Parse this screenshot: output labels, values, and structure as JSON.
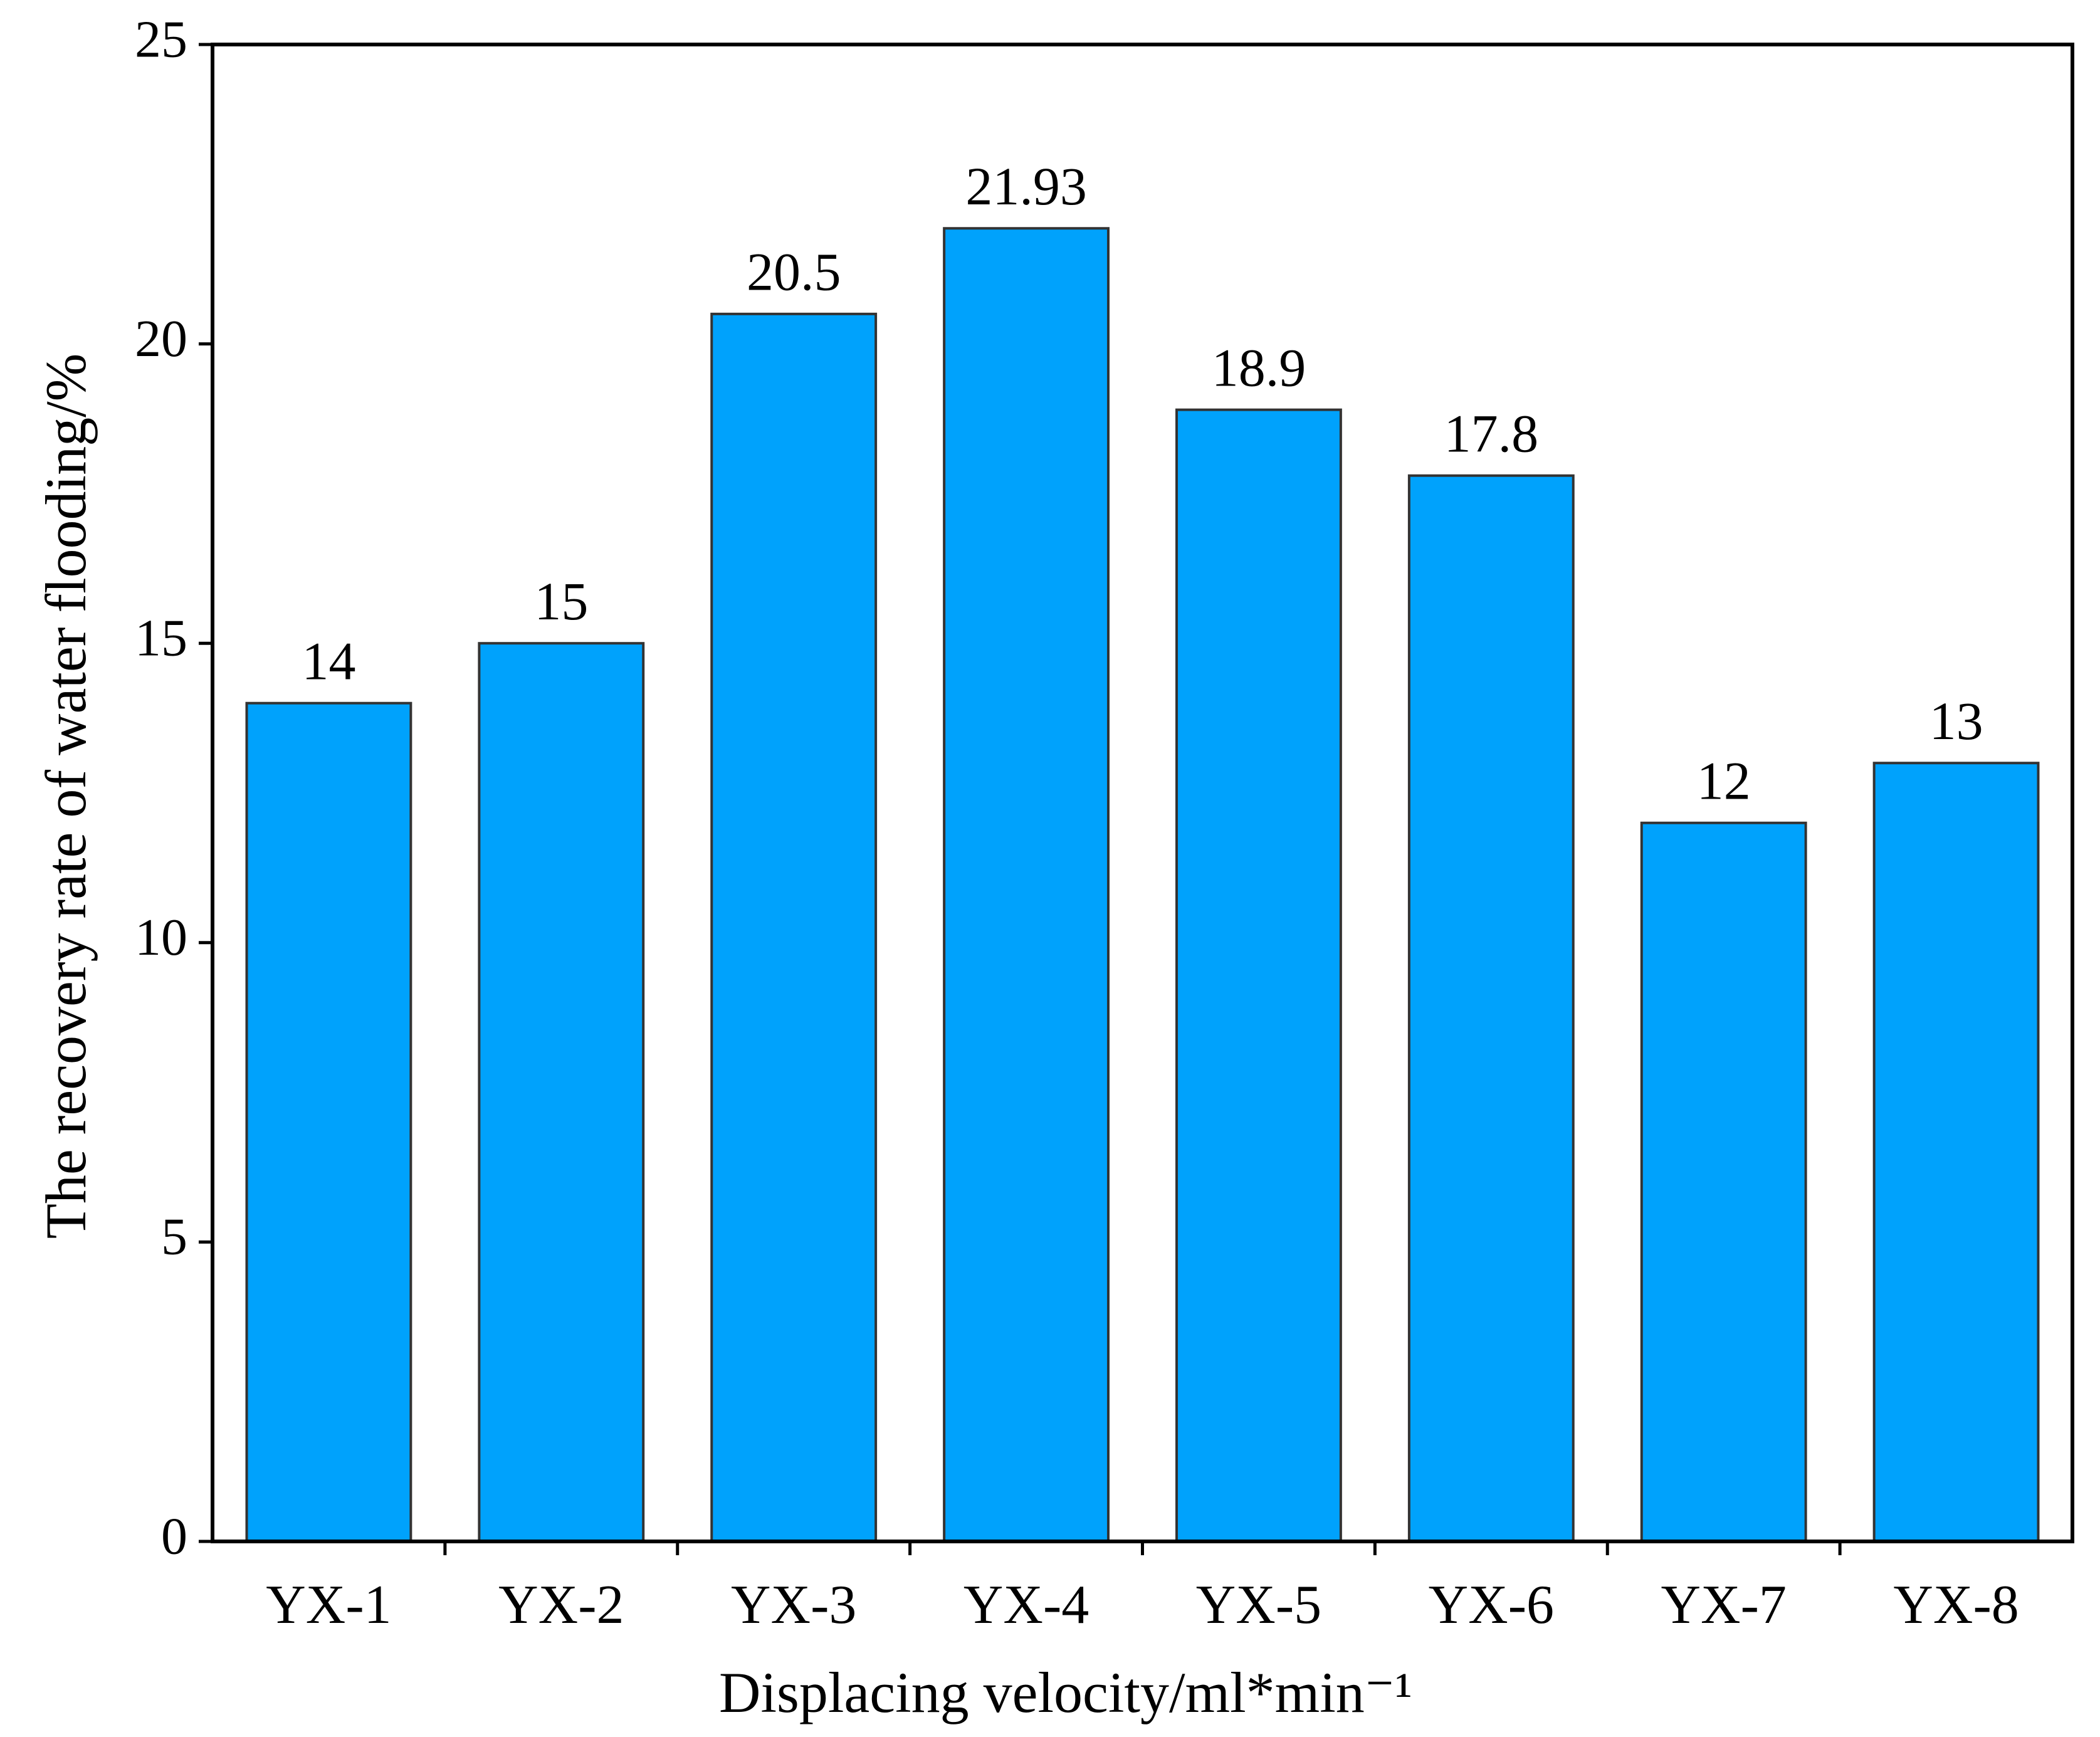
{
  "chart_data": {
    "type": "bar",
    "x_label": "Displacing velocity/ml*min⁻¹",
    "y_label": "The recovery rate of water flooding/%",
    "categories": [
      "YX-1",
      "YX-2",
      "YX-3",
      "YX-4",
      "YX-5",
      "YX-6",
      "YX-7",
      "YX-8"
    ],
    "values": [
      14,
      15,
      20.5,
      21.93,
      18.9,
      17.8,
      12,
      13
    ],
    "color": "#00a2fc",
    "ylim": [
      0,
      25
    ],
    "yticks": [
      0,
      5,
      10,
      15,
      20,
      25
    ],
    "grid": false
  }
}
